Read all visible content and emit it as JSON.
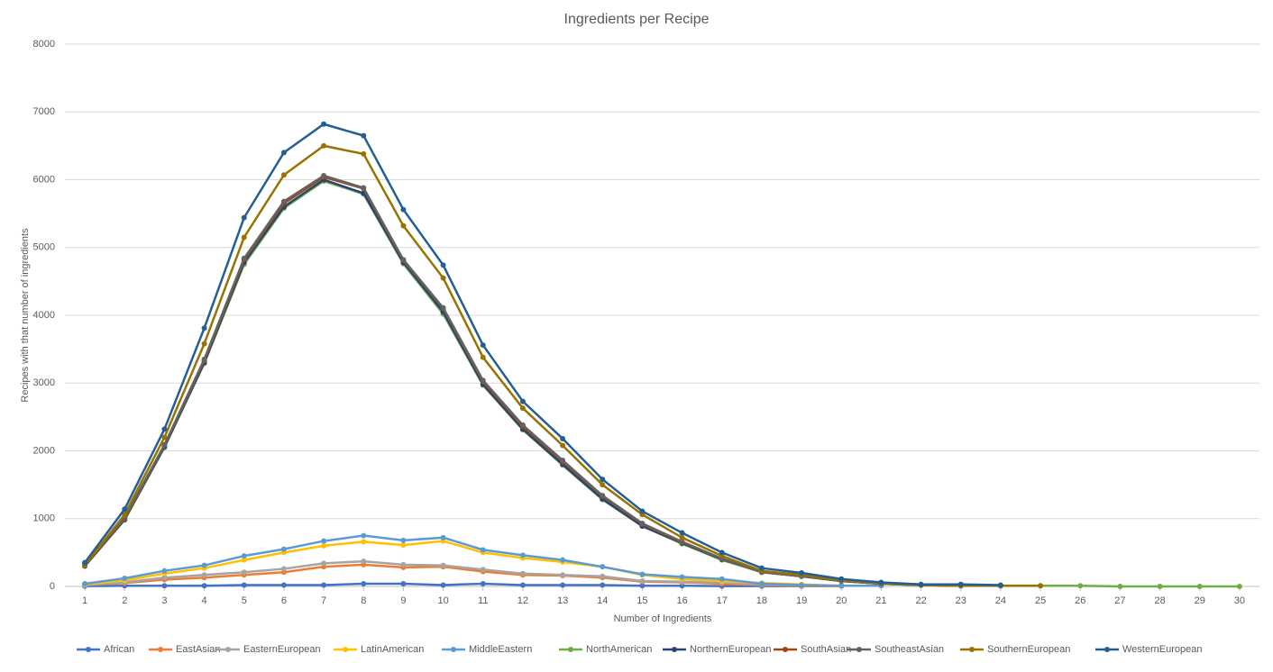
{
  "chart_data": {
    "type": "line",
    "title": "Ingredients per Recipe",
    "x_label": "Number  of  Ingredients",
    "y_label": "Recipes with that number  of  ingredients",
    "x": [
      1,
      2,
      3,
      4,
      5,
      6,
      7,
      8,
      9,
      10,
      11,
      12,
      13,
      14,
      15,
      16,
      17,
      18,
      19,
      20,
      21,
      22,
      23,
      24,
      25,
      26,
      27,
      28,
      29,
      30
    ],
    "xlim": [
      0.5,
      30.5
    ],
    "ylim": [
      0,
      8000
    ],
    "yticks": [
      0,
      1000,
      2000,
      3000,
      4000,
      5000,
      6000,
      7000,
      8000
    ],
    "grid": true,
    "legend": "bottom",
    "series": [
      {
        "name": "African",
        "color": "#4472c4",
        "values": [
          5,
          10,
          10,
          10,
          20,
          20,
          20,
          40,
          40,
          20,
          40,
          20,
          20,
          20,
          10,
          10,
          5,
          5,
          5,
          5,
          null,
          null,
          null,
          null,
          null,
          null,
          null,
          null,
          null,
          null
        ]
      },
      {
        "name": "EastAsian",
        "color": "#ed7d31",
        "values": [
          20,
          50,
          100,
          130,
          170,
          210,
          290,
          320,
          280,
          290,
          220,
          170,
          160,
          130,
          70,
          60,
          40,
          20,
          10,
          5,
          null,
          null,
          null,
          null,
          null,
          null,
          null,
          null,
          null,
          null
        ]
      },
      {
        "name": "EasternEuropean",
        "color": "#a5a5a5",
        "values": [
          20,
          60,
          130,
          170,
          210,
          260,
          340,
          370,
          320,
          310,
          250,
          190,
          170,
          150,
          80,
          70,
          60,
          30,
          20,
          10,
          null,
          null,
          null,
          null,
          null,
          null,
          null,
          null,
          null,
          null
        ]
      },
      {
        "name": "LatinAmerican",
        "color": "#ffc000",
        "values": [
          30,
          90,
          190,
          270,
          390,
          500,
          600,
          660,
          610,
          670,
          500,
          420,
          360,
          290,
          170,
          110,
          80,
          50,
          30,
          10,
          10,
          null,
          null,
          null,
          null,
          null,
          null,
          null,
          null,
          null
        ]
      },
      {
        "name": "MiddleEastern",
        "color": "#5b9bd5",
        "values": [
          40,
          120,
          230,
          310,
          450,
          550,
          670,
          750,
          680,
          720,
          540,
          460,
          390,
          290,
          180,
          140,
          110,
          40,
          20,
          10,
          10,
          null,
          null,
          null,
          null,
          null,
          null,
          null,
          null,
          null
        ]
      },
      {
        "name": "NorthAmerican",
        "color": "#70ad47",
        "values": [
          300,
          980,
          2050,
          3290,
          4750,
          5580,
          5980,
          5790,
          4760,
          4020,
          2970,
          2310,
          1790,
          1280,
          890,
          630,
          390,
          210,
          150,
          80,
          40,
          20,
          10,
          10,
          10,
          10,
          0,
          0,
          0,
          0
        ]
      },
      {
        "name": "NorthernEuropean",
        "color": "#264478",
        "values": [
          300,
          990,
          2060,
          3300,
          4780,
          5600,
          6000,
          5800,
          4780,
          4050,
          2980,
          2320,
          1800,
          1290,
          890,
          640,
          400,
          220,
          160,
          90,
          50,
          20,
          10,
          10,
          null,
          null,
          null,
          null,
          null,
          null
        ]
      },
      {
        "name": "SouthAsian",
        "color": "#9e480e",
        "values": [
          310,
          1000,
          2080,
          3330,
          4820,
          5650,
          6040,
          5870,
          4810,
          4100,
          3020,
          2360,
          1840,
          1330,
          920,
          650,
          410,
          210,
          150,
          80,
          40,
          20,
          10,
          10,
          null,
          null,
          null,
          null,
          null,
          null
        ]
      },
      {
        "name": "SoutheastAsian",
        "color": "#636363",
        "values": [
          320,
          1010,
          2090,
          3350,
          4840,
          5680,
          6060,
          5880,
          4820,
          4110,
          3040,
          2380,
          1860,
          1340,
          930,
          660,
          410,
          210,
          150,
          80,
          40,
          20,
          10,
          10,
          null,
          null,
          null,
          null,
          null,
          null
        ]
      },
      {
        "name": "SouthernEuropean",
        "color": "#997300",
        "values": [
          310,
          1060,
          2200,
          3580,
          5150,
          6070,
          6500,
          6380,
          5320,
          4550,
          3380,
          2630,
          2080,
          1500,
          1060,
          720,
          450,
          230,
          170,
          90,
          50,
          20,
          10,
          10,
          10,
          null,
          null,
          null,
          null,
          null
        ]
      },
      {
        "name": "WesternEuropean",
        "color": "#255e91",
        "values": [
          350,
          1140,
          2320,
          3810,
          5440,
          6400,
          6820,
          6650,
          5560,
          4740,
          3560,
          2730,
          2180,
          1580,
          1110,
          790,
          500,
          270,
          200,
          110,
          60,
          30,
          30,
          20,
          null,
          null,
          null,
          null,
          null,
          null
        ]
      }
    ]
  }
}
